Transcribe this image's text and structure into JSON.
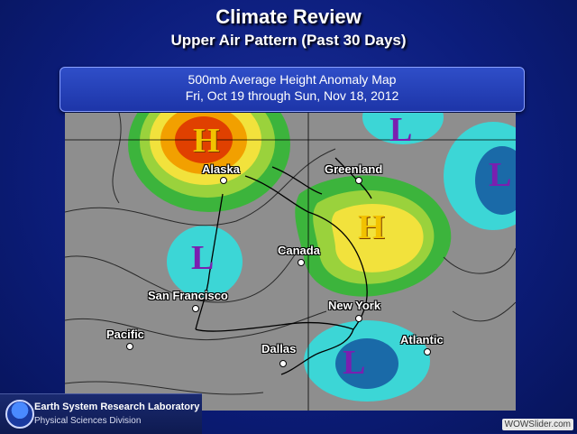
{
  "header": {
    "title": "Climate Review",
    "subtitle": "Upper Air Pattern (Past 30 Days)"
  },
  "map_panel": {
    "line1": "500mb Average Height Anomaly Map",
    "line2": "Fri, Oct 19 through Sun, Nov 18, 2012"
  },
  "map": {
    "locations": [
      {
        "name": "Alaska"
      },
      {
        "name": "Greenland"
      },
      {
        "name": "Canada"
      },
      {
        "name": "San Francisco"
      },
      {
        "name": "New York"
      },
      {
        "name": "Pacific"
      },
      {
        "name": "Dallas"
      },
      {
        "name": "Atlantic"
      }
    ],
    "systems": [
      {
        "letter": "H",
        "type": "high",
        "color": "#f2c200"
      },
      {
        "letter": "H",
        "type": "high",
        "color": "#f2c200"
      },
      {
        "letter": "L",
        "type": "low",
        "color": "#7a1fb0"
      },
      {
        "letter": "L",
        "type": "low",
        "color": "#7a1fb0"
      },
      {
        "letter": "L",
        "type": "low",
        "color": "#7a1fb0"
      },
      {
        "letter": "L",
        "type": "low",
        "color": "#7a1fb0"
      }
    ],
    "colors": {
      "background": "#909090",
      "positive_anomaly": [
        "#3cb43c",
        "#9ad23c",
        "#f2e23c",
        "#f2a000",
        "#e04000"
      ],
      "negative_anomaly": [
        "#3cd6d6",
        "#1a6aa8"
      ]
    }
  },
  "logo": {
    "line1": "Earth System Research Laboratory",
    "line2": "Physical Sciences Division",
    "emblem": "NOAA"
  },
  "watermark": "WOWSlider.com"
}
